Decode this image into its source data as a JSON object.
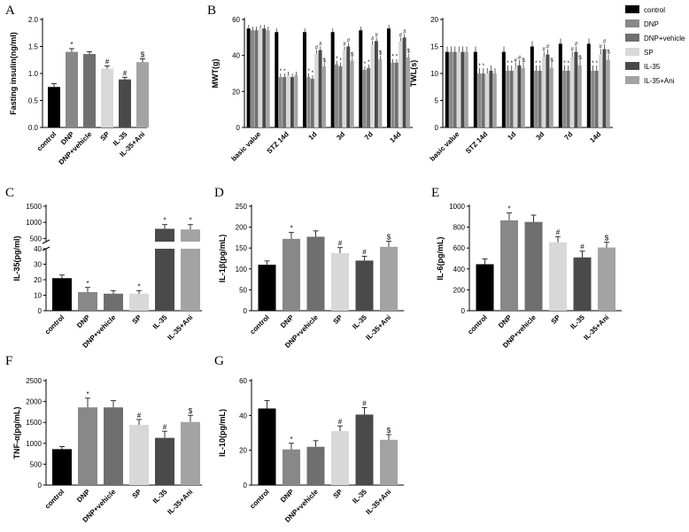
{
  "colors": {
    "control": "#000000",
    "DNP": "#888888",
    "DNP+vehicle": "#6f6f6f",
    "SP": "#d8d8d8",
    "IL-35": "#4a4a4a",
    "IL-35+Ani": "#a3a3a3"
  },
  "legend": {
    "items": [
      "control",
      "DNP",
      "DNP+vehicle",
      "SP",
      "IL-35",
      "IL-35+Ani"
    ]
  },
  "chart_data": [
    {
      "panel": "A",
      "type": "bar",
      "ylabel": "Fasting insulin(ng/ml)",
      "categories": [
        "control",
        "DNP",
        "DNP+vehicle",
        "SP",
        "IL-35",
        "IL-35+Ani"
      ],
      "values": [
        0.75,
        1.4,
        1.36,
        1.09,
        0.89,
        1.21
      ],
      "errors": [
        0.06,
        0.06,
        0.04,
        0.05,
        0.04,
        0.06
      ],
      "significance": [
        "",
        "*",
        "",
        "#",
        "#",
        "$"
      ],
      "ylim": [
        0,
        2.0
      ],
      "yticks": [
        "0.0",
        "0.5",
        "1.0",
        "1.5",
        "2.0"
      ],
      "ytick_values": [
        0,
        0.5,
        1.0,
        1.5,
        2.0
      ]
    },
    {
      "panel": "B",
      "type": "bar",
      "ylabel": "MWT(g)",
      "series_names": [
        "control",
        "DNP",
        "DNP+vehicle",
        "SP",
        "IL-35",
        "IL-35+Ani"
      ],
      "categories": [
        "basic value",
        "STZ 14d",
        "1d",
        "3d",
        "7d",
        "14d"
      ],
      "series": [
        {
          "name": "control",
          "values": [
            55,
            53,
            53,
            53,
            54,
            55
          ]
        },
        {
          "name": "DNP",
          "values": [
            54,
            28,
            28,
            35,
            32,
            36
          ]
        },
        {
          "name": "DNP+vehicle",
          "values": [
            54,
            28,
            27,
            34,
            33,
            36
          ]
        },
        {
          "name": "SP",
          "values": [
            55,
            29,
            41,
            43,
            46,
            48
          ]
        },
        {
          "name": "IL-35",
          "values": [
            55,
            28,
            43,
            45,
            48,
            50
          ]
        },
        {
          "name": "IL-35+Ani",
          "values": [
            54,
            29,
            34,
            37,
            38,
            39
          ]
        }
      ],
      "ylim": [
        0,
        60
      ],
      "yticks": [
        "0",
        "20",
        "40",
        "60"
      ],
      "ytick_values": [
        0,
        20,
        40,
        60
      ]
    },
    {
      "panel": "B2",
      "type": "bar",
      "ylabel": "TWL(s)",
      "series_names": [
        "control",
        "DNP",
        "DNP+vehicle",
        "SP",
        "IL-35",
        "IL-35+Ani"
      ],
      "categories": [
        "basic value",
        "STZ 14d",
        "1d",
        "3d",
        "7d",
        "14d"
      ],
      "series": [
        {
          "name": "control",
          "values": [
            14,
            14,
            14,
            15,
            15.5,
            15.5
          ]
        },
        {
          "name": "DNP",
          "values": [
            14,
            10,
            10.5,
            10.5,
            10.5,
            10.5
          ]
        },
        {
          "name": "DNP+vehicle",
          "values": [
            14,
            10,
            10.5,
            10.5,
            10.5,
            10.5
          ]
        },
        {
          "name": "SP",
          "values": [
            14,
            10,
            11,
            13,
            13,
            13.5
          ]
        },
        {
          "name": "IL-35",
          "values": [
            14,
            10.5,
            11.5,
            13.5,
            14,
            14.5
          ]
        },
        {
          "name": "IL-35+Ani",
          "values": [
            14,
            10,
            11,
            11,
            11.5,
            12.5
          ]
        }
      ],
      "ylim": [
        0,
        20
      ],
      "yticks": [
        "0",
        "5",
        "10",
        "15",
        "20"
      ],
      "ytick_values": [
        0,
        5,
        10,
        15,
        20
      ]
    },
    {
      "panel": "C",
      "type": "bar",
      "ylabel": "IL-35(pg/ml)",
      "categories": [
        "control",
        "DNP",
        "DNP+vehicle",
        "SP",
        "IL-35",
        "IL-35+Ani"
      ],
      "values": [
        21,
        12,
        11,
        11,
        800,
        780
      ],
      "errors": [
        2,
        3,
        2,
        2,
        130,
        150
      ],
      "significance": [
        "",
        "*",
        "",
        "*",
        "*",
        "*"
      ],
      "broken_axis": {
        "lower": [
          0,
          40
        ],
        "upper": [
          400,
          1500
        ]
      },
      "yticks": [
        "0",
        "10",
        "20",
        "30",
        "40",
        "500",
        "1000",
        "1500"
      ],
      "ytick_values": [
        0,
        10,
        20,
        30,
        40,
        500,
        1000,
        1500
      ]
    },
    {
      "panel": "D",
      "type": "bar",
      "ylabel": "IL-1β(pg/mL)",
      "categories": [
        "control",
        "DNP",
        "DNP+vehicle",
        "SP",
        "IL-35",
        "IL-35+Ani"
      ],
      "values": [
        110,
        172,
        177,
        138,
        120,
        153
      ],
      "errors": [
        9,
        15,
        14,
        13,
        10,
        13
      ],
      "significance": [
        "",
        "*",
        "",
        "#",
        "#",
        "$"
      ],
      "ylim": [
        0,
        250
      ],
      "yticks": [
        "0",
        "50",
        "100",
        "150",
        "200",
        "250"
      ],
      "ytick_values": [
        0,
        50,
        100,
        150,
        200,
        250
      ]
    },
    {
      "panel": "E",
      "type": "bar",
      "ylabel": "IL-6(pg/mL)",
      "categories": [
        "control",
        "DNP",
        "DNP+vehicle",
        "SP",
        "IL-35",
        "IL-35+Ani"
      ],
      "values": [
        445,
        865,
        850,
        655,
        510,
        605
      ],
      "errors": [
        50,
        70,
        65,
        55,
        60,
        50
      ],
      "significance": [
        "",
        "*",
        "",
        "#",
        "#",
        "$"
      ],
      "ylim": [
        0,
        1000
      ],
      "yticks": [
        "0",
        "200",
        "400",
        "600",
        "800",
        "1000"
      ],
      "ytick_values": [
        0,
        200,
        400,
        600,
        800,
        1000
      ]
    },
    {
      "panel": "F",
      "type": "bar",
      "ylabel": "TNF-α(pg/mL)",
      "categories": [
        "control",
        "DNP",
        "DNP+vehicle",
        "SP",
        "IL-35",
        "IL-35+Ani"
      ],
      "values": [
        860,
        1860,
        1860,
        1440,
        1130,
        1510
      ],
      "errors": [
        60,
        220,
        160,
        130,
        160,
        160
      ],
      "significance": [
        "",
        "*",
        "",
        "#",
        "#",
        "$"
      ],
      "ylim": [
        0,
        2500
      ],
      "yticks": [
        "0",
        "500",
        "1000",
        "1500",
        "2000",
        "2500"
      ],
      "ytick_values": [
        0,
        500,
        1000,
        1500,
        2000,
        2500
      ]
    },
    {
      "panel": "G",
      "type": "bar",
      "ylabel": "IL-10(pg/mL)",
      "categories": [
        "control",
        "DNP",
        "DNP+vehicle",
        "SP",
        "IL-35",
        "IL-35+Ani"
      ],
      "values": [
        44,
        20.5,
        22,
        31,
        40.5,
        26
      ],
      "errors": [
        4.5,
        3.5,
        3.5,
        3,
        4,
        3
      ],
      "significance": [
        "",
        "*",
        "",
        "#",
        "#",
        "$"
      ],
      "ylim": [
        0,
        60
      ],
      "yticks": [
        "0",
        "20",
        "40",
        "60"
      ],
      "ytick_values": [
        0,
        20,
        40,
        60
      ]
    }
  ],
  "sig_symbols": {
    "star": "*",
    "hash": "#",
    "dollar": "$"
  }
}
